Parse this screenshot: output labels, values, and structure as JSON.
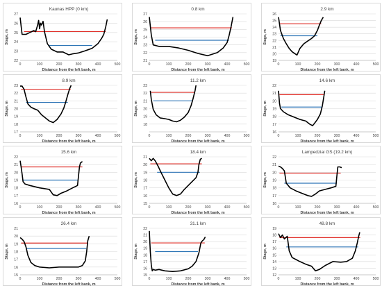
{
  "figure": {
    "ylabel": "Stage, m",
    "xlabel": "Distance from the left bank, m",
    "colors": {
      "profile": "#000000",
      "red_level": "#e0302a",
      "blue_level": "#2e75b6",
      "grid": "#d9d9d9",
      "tick_text": "#404040"
    }
  },
  "chart_data": [
    {
      "type": "line",
      "title": "Kaunas HPP (0 km)",
      "xlabel": "Distance from the left bank, m",
      "ylabel": "Stage, m",
      "xlim": [
        0,
        500
      ],
      "ylim": [
        22,
        27
      ],
      "xticks": [
        0,
        100,
        200,
        300,
        400,
        500
      ],
      "yticks": [
        22,
        23,
        24,
        25,
        26,
        27
      ],
      "grid": true,
      "red_level": {
        "y": 25.1,
        "x": [
          20,
          440
        ]
      },
      "blue_level": {
        "y": 23.6,
        "x": [
          150,
          370
        ]
      },
      "profile": {
        "x": [
          0,
          10,
          30,
          50,
          70,
          80,
          90,
          95,
          100,
          105,
          110,
          118,
          125,
          140,
          160,
          190,
          220,
          250,
          270,
          300,
          330,
          370,
          400,
          420,
          430,
          440,
          448
        ],
        "y": [
          26.6,
          24.8,
          24.8,
          25.0,
          25.2,
          25.1,
          25.8,
          26.3,
          25.4,
          26.0,
          25.8,
          26.2,
          25.1,
          23.8,
          23.2,
          22.9,
          22.9,
          22.6,
          22.7,
          22.8,
          23.0,
          23.3,
          23.8,
          24.4,
          24.8,
          25.6,
          26.4
        ]
      }
    },
    {
      "type": "line",
      "title": "0.8 km",
      "xlabel": "Distance from the left bank, m",
      "ylabel": "Stage, m",
      "xlim": [
        0,
        500
      ],
      "ylim": [
        21,
        27
      ],
      "xticks": [
        0,
        100,
        200,
        300,
        400,
        500
      ],
      "yticks": [
        21,
        22,
        23,
        24,
        25,
        26,
        27
      ],
      "grid": true,
      "red_level": {
        "y": 25.2,
        "x": [
          5,
          425
        ]
      },
      "blue_level": {
        "y": 23.6,
        "x": [
          30,
          410
        ]
      },
      "profile": {
        "x": [
          0,
          10,
          20,
          50,
          100,
          150,
          200,
          250,
          300,
          350,
          380,
          400,
          410,
          420,
          430
        ],
        "y": [
          26.6,
          24.3,
          23.0,
          22.8,
          22.8,
          22.6,
          22.3,
          21.9,
          21.6,
          22.0,
          22.6,
          23.3,
          24.2,
          25.3,
          26.6
        ]
      }
    },
    {
      "type": "line",
      "title": "2.9 km",
      "xlabel": "Distance from the left bank, m",
      "ylabel": "Stage, m",
      "xlim": [
        0,
        500
      ],
      "ylim": [
        19,
        26
      ],
      "xticks": [
        0,
        100,
        200,
        300,
        400,
        500
      ],
      "yticks": [
        19,
        20,
        21,
        22,
        23,
        24,
        25,
        26
      ],
      "grid": true,
      "red_level": {
        "y": 24.5,
        "x": [
          5,
          220
        ]
      },
      "blue_level": {
        "y": 22.7,
        "x": [
          10,
          200
        ]
      },
      "profile": {
        "x": [
          0,
          10,
          25,
          40,
          55,
          70,
          85,
          95,
          110,
          130,
          150,
          170,
          185,
          200,
          210,
          220,
          230
        ],
        "y": [
          25.5,
          23.5,
          22.3,
          21.5,
          20.8,
          20.3,
          20.0,
          19.8,
          20.8,
          21.5,
          21.9,
          22.3,
          22.7,
          23.5,
          24.3,
          25.0,
          25.5
        ]
      }
    },
    {
      "type": "line",
      "title": "8.9 km",
      "xlabel": "Distance from the left bank, m",
      "ylabel": "Stage, m",
      "xlim": [
        0,
        500
      ],
      "ylim": [
        17,
        23
      ],
      "xticks": [
        0,
        100,
        200,
        300,
        400,
        500
      ],
      "yticks": [
        17,
        18,
        19,
        20,
        21,
        22,
        23
      ],
      "grid": true,
      "red_level": {
        "y": 22.5,
        "x": [
          5,
          260
        ]
      },
      "blue_level": {
        "y": 20.8,
        "x": [
          30,
          245
        ]
      },
      "profile": {
        "x": [
          0,
          10,
          20,
          30,
          40,
          55,
          70,
          90,
          110,
          130,
          150,
          170,
          190,
          210,
          225,
          235,
          245,
          255,
          262
        ],
        "y": [
          22.9,
          22.9,
          22.5,
          21.5,
          20.6,
          20.2,
          20.0,
          19.8,
          19.2,
          18.8,
          18.4,
          18.2,
          18.6,
          19.3,
          20.1,
          20.9,
          21.8,
          22.6,
          23.0
        ]
      }
    },
    {
      "type": "line",
      "title": "11.2 km",
      "xlabel": "Distance from the left bank, m",
      "ylabel": "Stage, m",
      "xlim": [
        0,
        500
      ],
      "ylim": [
        17,
        23
      ],
      "xticks": [
        0,
        100,
        200,
        300,
        400,
        500
      ],
      "yticks": [
        18,
        19,
        20,
        21,
        22,
        23
      ],
      "grid": true,
      "red_level": {
        "y": 22.1,
        "x": [
          10,
          235
        ]
      },
      "blue_level": {
        "y": 21.0,
        "x": [
          20,
          225
        ]
      },
      "profile": {
        "x": [
          5,
          10,
          20,
          35,
          55,
          80,
          100,
          120,
          140,
          160,
          180,
          200,
          215,
          225,
          235,
          240
        ],
        "y": [
          22.3,
          21.2,
          19.9,
          19.2,
          18.8,
          18.7,
          18.6,
          18.4,
          18.3,
          18.5,
          18.9,
          19.5,
          20.4,
          21.3,
          22.3,
          23.0
        ]
      }
    },
    {
      "type": "line",
      "title": "14.6 km",
      "xlabel": "Distance from the left bank, m",
      "ylabel": "Stage, m",
      "xlim": [
        0,
        500
      ],
      "ylim": [
        16,
        22
      ],
      "xticks": [
        0,
        100,
        200,
        300,
        400,
        500
      ],
      "yticks": [
        16,
        17,
        18,
        19,
        20,
        21,
        22
      ],
      "grid": true,
      "red_level": {
        "y": 20.8,
        "x": [
          5,
          235
        ]
      },
      "blue_level": {
        "y": 19.2,
        "x": [
          15,
          225
        ]
      },
      "profile": {
        "x": [
          0,
          5,
          10,
          25,
          50,
          80,
          110,
          140,
          160,
          175,
          185,
          200,
          215,
          225,
          232,
          238
        ],
        "y": [
          21.3,
          19.7,
          19.0,
          18.6,
          18.2,
          17.9,
          17.6,
          17.4,
          17.0,
          16.8,
          17.1,
          17.6,
          18.3,
          19.3,
          20.4,
          21.3
        ]
      }
    },
    {
      "type": "line",
      "title": "15.6 km",
      "xlabel": "Distance from the left bank, m",
      "ylabel": "Stage, m",
      "xlim": [
        0,
        500
      ],
      "ylim": [
        16,
        22
      ],
      "xticks": [
        0,
        100,
        200,
        300,
        400,
        500
      ],
      "yticks": [
        16,
        17,
        18,
        19,
        20,
        21,
        22
      ],
      "grid": true,
      "red_level": {
        "y": 20.7,
        "x": [
          5,
          320
        ]
      },
      "blue_level": {
        "y": 19.0,
        "x": [
          10,
          300
        ]
      },
      "profile": {
        "x": [
          0,
          5,
          10,
          15,
          25,
          50,
          100,
          150,
          170,
          190,
          210,
          240,
          270,
          295,
          300,
          305,
          310,
          320
        ],
        "y": [
          21.5,
          20.7,
          19.8,
          18.8,
          18.5,
          18.3,
          18.0,
          17.8,
          17.1,
          17.0,
          17.3,
          17.6,
          18.0,
          18.3,
          19.5,
          20.7,
          21.2,
          21.4
        ]
      }
    },
    {
      "type": "line",
      "title": "18.4 km",
      "xlabel": "Distance from the left bank, m",
      "ylabel": "Stage, m",
      "xlim": [
        0,
        500
      ],
      "ylim": [
        15,
        21
      ],
      "xticks": [
        0,
        100,
        200,
        300,
        400,
        500
      ],
      "yticks": [
        15,
        16,
        17,
        18,
        19,
        20,
        21
      ],
      "grid": true,
      "red_level": {
        "y": 20.1,
        "x": [
          5,
          270
        ]
      },
      "blue_level": {
        "y": 19.0,
        "x": [
          40,
          260
        ]
      },
      "profile": {
        "x": [
          0,
          10,
          20,
          30,
          45,
          60,
          80,
          100,
          120,
          140,
          160,
          180,
          200,
          220,
          240,
          250,
          255,
          262,
          270
        ],
        "y": [
          20.8,
          20.5,
          20.8,
          20.5,
          19.8,
          19.0,
          18.0,
          17.0,
          16.2,
          16.0,
          16.2,
          16.8,
          17.3,
          17.8,
          18.3,
          19.0,
          20.0,
          20.7,
          20.8
        ]
      }
    },
    {
      "type": "line",
      "title": "Lampedziai GS (19.2 km)",
      "xlabel": "Distance from the left bank, m",
      "ylabel": "Stage, m",
      "xlim": [
        0,
        500
      ],
      "ylim": [
        16,
        22
      ],
      "xticks": [
        0,
        100,
        200,
        300,
        400,
        500
      ],
      "yticks": [
        16,
        17,
        18,
        19,
        20,
        21,
        22
      ],
      "grid": true,
      "red_level": {
        "y": 19.9,
        "x": [
          5,
          320
        ]
      },
      "blue_level": {
        "y": 18.6,
        "x": [
          30,
          300
        ]
      },
      "profile": {
        "x": [
          0,
          10,
          20,
          30,
          40,
          60,
          90,
          120,
          150,
          170,
          190,
          210,
          240,
          270,
          295,
          300,
          305,
          315,
          325
        ],
        "y": [
          20.8,
          20.7,
          20.5,
          20.2,
          18.6,
          18.0,
          17.6,
          17.3,
          17.0,
          16.9,
          17.2,
          17.6,
          17.8,
          18.0,
          18.2,
          19.5,
          20.7,
          20.7,
          20.6
        ]
      }
    },
    {
      "type": "line",
      "title": "26.4 km",
      "xlabel": "Distance from the left bank, m",
      "ylabel": "Stage, m",
      "xlim": [
        0,
        500
      ],
      "ylim": [
        15,
        21
      ],
      "xticks": [
        0,
        100,
        200,
        300,
        400,
        500
      ],
      "yticks": [
        15,
        16,
        17,
        18,
        19,
        20,
        21
      ],
      "grid": true,
      "red_level": {
        "y": 19.1,
        "x": [
          5,
          350
        ]
      },
      "blue_level": {
        "y": 18.4,
        "x": [
          30,
          340
        ]
      },
      "profile": {
        "x": [
          0,
          10,
          20,
          30,
          40,
          55,
          75,
          100,
          150,
          200,
          250,
          300,
          320,
          335,
          342,
          348,
          355
        ],
        "y": [
          19.8,
          19.6,
          19.3,
          18.6,
          17.5,
          16.6,
          16.2,
          16.0,
          15.9,
          16.0,
          16.0,
          16.0,
          16.2,
          16.8,
          18.0,
          19.4,
          20.0
        ]
      }
    },
    {
      "type": "line",
      "title": "31.1 km",
      "xlabel": "Distance from the left bank, m",
      "ylabel": "Stage, m",
      "xlim": [
        0,
        500
      ],
      "ylim": [
        15,
        22
      ],
      "xticks": [
        0,
        100,
        200,
        300,
        400,
        500
      ],
      "yticks": [
        15,
        16,
        17,
        18,
        19,
        20,
        21,
        22
      ],
      "grid": true,
      "red_level": {
        "y": 19.8,
        "x": [
          10,
          285
        ]
      },
      "blue_level": {
        "y": 18.5,
        "x": [
          30,
          250
        ]
      },
      "profile": {
        "x": [
          0,
          5,
          10,
          15,
          20,
          30,
          50,
          80,
          120,
          160,
          200,
          220,
          240,
          255,
          265,
          272,
          280,
          288
        ],
        "y": [
          21.6,
          18.5,
          16.5,
          15.6,
          15.8,
          15.7,
          15.8,
          15.6,
          15.5,
          15.6,
          15.9,
          16.3,
          17.0,
          18.3,
          19.8,
          20.1,
          20.3,
          20.7
        ]
      }
    },
    {
      "type": "line",
      "title": "48.8 km",
      "xlabel": "Distance from the left bank, m",
      "ylabel": "Stage, m",
      "xlim": [
        0,
        500
      ],
      "ylim": [
        12,
        19
      ],
      "xticks": [
        0,
        100,
        200,
        300,
        400,
        500
      ],
      "yticks": [
        12,
        13,
        14,
        15,
        16,
        17,
        18,
        19
      ],
      "grid": true,
      "red_level": {
        "y": 17.6,
        "x": [
          5,
          420
        ]
      },
      "blue_level": {
        "y": 16.2,
        "x": [
          40,
          410
        ]
      },
      "profile": {
        "x": [
          0,
          10,
          20,
          30,
          45,
          55,
          70,
          90,
          110,
          140,
          170,
          190,
          210,
          240,
          280,
          320,
          350,
          380,
          395,
          405,
          412,
          418
        ],
        "y": [
          18.2,
          17.6,
          18.0,
          17.4,
          17.8,
          15.6,
          14.6,
          14.3,
          14.0,
          13.6,
          13.3,
          12.6,
          12.8,
          13.4,
          14.0,
          13.9,
          14.0,
          14.5,
          15.6,
          16.8,
          17.8,
          18.4
        ]
      }
    }
  ]
}
